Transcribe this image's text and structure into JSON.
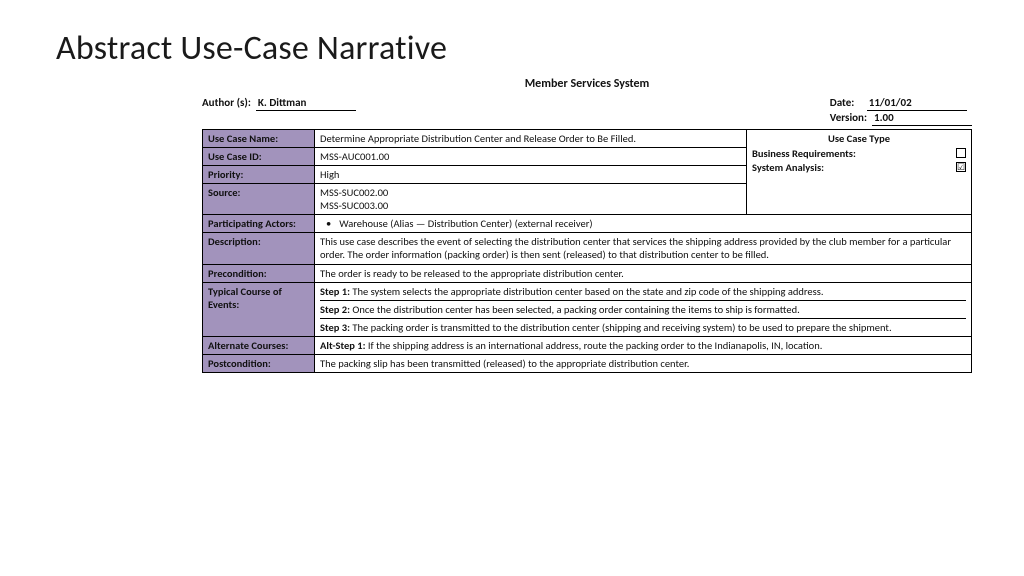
{
  "slide_title": "Abstract Use-Case Narrative",
  "doc_title": "Member Services System",
  "header": {
    "author_label": "Author (s):",
    "author_value": "K. Dittman",
    "date_label": "Date:",
    "date_value": "11/01/02",
    "version_label": "Version:",
    "version_value": "1.00"
  },
  "side": {
    "title": "Use Case Type",
    "biz_label": "Business Requirements:",
    "biz_checked": "",
    "sys_label": "System Analysis:",
    "sys_checked": "☑"
  },
  "labels": {
    "name": "Use Case Name:",
    "id": "Use Case ID:",
    "priority": "Priority:",
    "source": "Source:",
    "actors": "Participating Actors:",
    "description": "Description:",
    "precondition": "Precondition:",
    "typical": "Typical Course of Events:",
    "alternate": "Alternate Courses:",
    "postcondition": "Postcondition:"
  },
  "values": {
    "name": "Determine Appropriate Distribution Center and Release Order to Be Filled.",
    "id": "MSS-AUC001.00",
    "priority": "High",
    "source1": "MSS-SUC002.00",
    "source2": "MSS-SUC003.00",
    "actors": "Warehouse (Alias — Distribution Center) (external receiver)",
    "description": "This use case describes the event of selecting the distribution center that services the shipping address provided by the club member for a particular order. The order information (packing order) is then sent (released) to that distribution center to be filled.",
    "precondition": "The order is ready to be released to the appropriate distribution center.",
    "step1_label": "Step 1:",
    "step1": " The system selects the appropriate distribution center based on the state and zip code of the shipping address.",
    "step2_label": "Step 2:",
    "step2": " Once the distribution center has been selected, a packing order containing the items to ship is formatted.",
    "step3_label": "Step 3:",
    "step3": " The packing order is transmitted to the distribution center (shipping and receiving system) to be used to prepare the shipment.",
    "alt_label": "Alt-Step 1:",
    "alt": " If the shipping address is an international address, route the packing order to the Indianapolis, IN, location.",
    "postcondition": "The packing slip has been transmitted (released) to the appropriate distribution center."
  },
  "colors": {
    "label_bg": "#a293bc",
    "border": "#000000"
  }
}
